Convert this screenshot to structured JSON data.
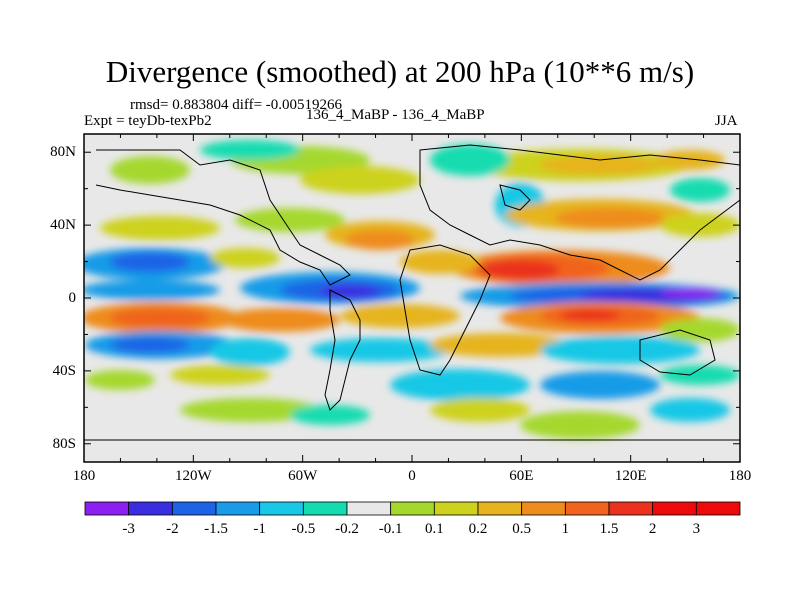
{
  "chart_data": {
    "type": "heatmap",
    "title": "Divergence (smoothed) at 200 hPa (10**6 m/s)",
    "left_info": "rmsd= 0.883804  diff= -0.00519266",
    "left_label": "Expt = teyDb-texPb2",
    "center_label": "136_4_MaBP - 136_4_MaBP",
    "right_label": "JJA",
    "x_ticks": [
      {
        "value": -180,
        "label": "180"
      },
      {
        "value": -120,
        "label": "120W"
      },
      {
        "value": -60,
        "label": "60W"
      },
      {
        "value": 0,
        "label": "0"
      },
      {
        "value": 60,
        "label": "60E"
      },
      {
        "value": 120,
        "label": "120E"
      },
      {
        "value": 180,
        "label": "180"
      }
    ],
    "y_ticks": [
      {
        "value": 80,
        "label": "80N"
      },
      {
        "value": 40,
        "label": "40N"
      },
      {
        "value": 0,
        "label": "0"
      },
      {
        "value": -40,
        "label": "40S"
      },
      {
        "value": -80,
        "label": "80S"
      }
    ],
    "xlim": [
      -180,
      180
    ],
    "ylim": [
      -90,
      90
    ],
    "colorbar": {
      "levels": [
        "-3",
        "-2",
        "-1.5",
        "-1",
        "-0.5",
        "-0.2",
        "-0.1",
        "0.1",
        "0.2",
        "0.5",
        "1",
        "1.5",
        "2",
        "3"
      ],
      "colors": [
        "#8b1ef0",
        "#3a2ee0",
        "#1e63e6",
        "#199be8",
        "#19c8e6",
        "#14dcb0",
        "#e8e8e8",
        "#a5d82d",
        "#cdd21e",
        "#e6b41e",
        "#ee8c1e",
        "#f0641e",
        "#ea321e",
        "#ee0a0a",
        "#ee0a0a"
      ]
    },
    "field_bands": [
      {
        "region": "northern mid-latitudes",
        "lat": 60,
        "level": "0.2"
      },
      {
        "region": "northern subtropics",
        "lat": 25,
        "level": "0.5"
      },
      {
        "region": "north equatorial east",
        "lat": 12,
        "level": "2"
      },
      {
        "region": "equatorial band",
        "lat": 2,
        "level": "-3"
      },
      {
        "region": "southern subtropics",
        "lat": -12,
        "level": "1.5"
      },
      {
        "region": "southern mid-latitudes",
        "lat": -30,
        "level": "-1"
      },
      {
        "region": "southern extratropics",
        "lat": -60,
        "level": "0.2"
      }
    ]
  }
}
